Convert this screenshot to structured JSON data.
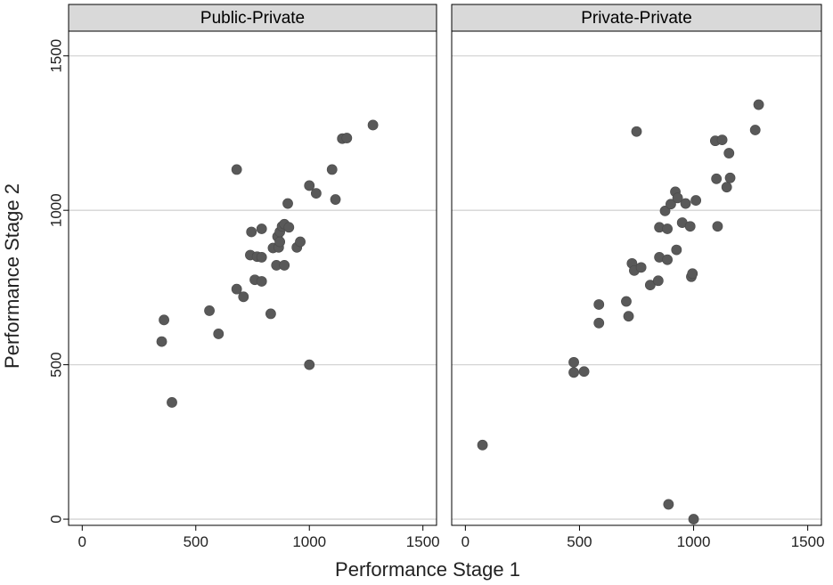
{
  "chart_data": {
    "type": "scatter",
    "xlabel": "Performance Stage 1",
    "ylabel": "Performance Stage 2",
    "xlim": [
      -60,
      1560
    ],
    "ylim": [
      -20,
      1580
    ],
    "xticks": [
      0,
      500,
      1000,
      1500
    ],
    "yticks": [
      0,
      500,
      1000,
      1500
    ],
    "grid": "horizontal",
    "marker_color": "#595959",
    "panels": [
      {
        "title": "Public-Private",
        "points": [
          [
            360,
            645
          ],
          [
            350,
            575
          ],
          [
            395,
            378
          ],
          [
            560,
            675
          ],
          [
            600,
            600
          ],
          [
            680,
            1132
          ],
          [
            680,
            745
          ],
          [
            710,
            720
          ],
          [
            740,
            855
          ],
          [
            745,
            930
          ],
          [
            760,
            775
          ],
          [
            770,
            850
          ],
          [
            790,
            940
          ],
          [
            790,
            848
          ],
          [
            790,
            770
          ],
          [
            830,
            665
          ],
          [
            840,
            878
          ],
          [
            855,
            822
          ],
          [
            860,
            915
          ],
          [
            865,
            880
          ],
          [
            870,
            898
          ],
          [
            870,
            930
          ],
          [
            880,
            948
          ],
          [
            890,
            955
          ],
          [
            890,
            822
          ],
          [
            905,
            1022
          ],
          [
            910,
            945
          ],
          [
            945,
            880
          ],
          [
            960,
            898
          ],
          [
            1000,
            1080
          ],
          [
            1000,
            500
          ],
          [
            1030,
            1055
          ],
          [
            1100,
            1132
          ],
          [
            1115,
            1035
          ],
          [
            1145,
            1232
          ],
          [
            1165,
            1234
          ],
          [
            1280,
            1276
          ]
        ]
      },
      {
        "title": "Private-Private",
        "points": [
          [
            75,
            240
          ],
          [
            475,
            508
          ],
          [
            475,
            475
          ],
          [
            520,
            478
          ],
          [
            585,
            695
          ],
          [
            585,
            635
          ],
          [
            705,
            705
          ],
          [
            715,
            657
          ],
          [
            730,
            828
          ],
          [
            740,
            805
          ],
          [
            750,
            1255
          ],
          [
            770,
            815
          ],
          [
            810,
            758
          ],
          [
            845,
            772
          ],
          [
            850,
            945
          ],
          [
            850,
            848
          ],
          [
            875,
            998
          ],
          [
            885,
            940
          ],
          [
            885,
            840
          ],
          [
            890,
            48
          ],
          [
            900,
            1020
          ],
          [
            920,
            1060
          ],
          [
            925,
            872
          ],
          [
            930,
            1040
          ],
          [
            950,
            960
          ],
          [
            965,
            1022
          ],
          [
            985,
            948
          ],
          [
            990,
            785
          ],
          [
            995,
            795
          ],
          [
            1000,
            0
          ],
          [
            1010,
            1032
          ],
          [
            1095,
            1225
          ],
          [
            1100,
            1102
          ],
          [
            1105,
            948
          ],
          [
            1125,
            1228
          ],
          [
            1145,
            1075
          ],
          [
            1155,
            1185
          ],
          [
            1160,
            1105
          ],
          [
            1270,
            1260
          ],
          [
            1285,
            1342
          ]
        ]
      }
    ]
  }
}
